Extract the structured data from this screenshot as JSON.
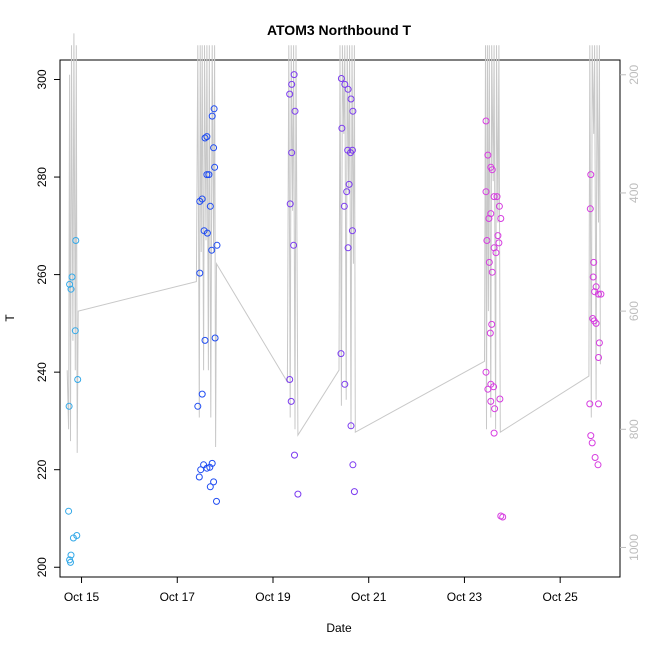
{
  "chart_data": {
    "type": "scatter",
    "title": "ATOM3 Northbound T",
    "xlabel": "Date",
    "ylabel": "T",
    "x_ticks": [
      "Oct 15",
      "Oct 17",
      "Oct 19",
      "Oct 21",
      "Oct 23",
      "Oct 25"
    ],
    "x_tick_values": [
      15,
      17,
      19,
      21,
      23,
      25
    ],
    "xlim": [
      14.55,
      26.25
    ],
    "ylim": [
      198,
      304
    ],
    "y_ticks": [
      200,
      220,
      240,
      260,
      280,
      300
    ],
    "secondary_y": {
      "ylim": [
        1050,
        175
      ],
      "reversed": true,
      "ticks": [
        200,
        400,
        600,
        800,
        1000
      ],
      "color": "#bdbdbd"
    },
    "grid": false,
    "colors": {
      "cyan": "#34a9e8",
      "blue": "#1f4cf2",
      "violet": "#7b3af0",
      "magenta": "#d63ce0",
      "pressure_line": "#c8c8c8"
    },
    "series": [
      {
        "color": "cyan",
        "points": [
          [
            14.75,
            258
          ],
          [
            14.78,
            257
          ],
          [
            14.8,
            259.5
          ],
          [
            14.88,
            267
          ],
          [
            14.87,
            248.5
          ],
          [
            14.92,
            238.5
          ],
          [
            14.74,
            233
          ],
          [
            14.73,
            211.5
          ],
          [
            14.78,
            202.5
          ],
          [
            14.83,
            206
          ],
          [
            14.9,
            206.5
          ],
          [
            14.75,
            201.5
          ],
          [
            14.77,
            201
          ]
        ]
      },
      {
        "color": "blue",
        "points": [
          [
            17.47,
            275
          ],
          [
            17.52,
            275.5
          ],
          [
            17.58,
            288
          ],
          [
            17.62,
            288.3
          ],
          [
            17.62,
            280.5
          ],
          [
            17.66,
            280.5
          ],
          [
            17.69,
            274
          ],
          [
            17.73,
            292.5
          ],
          [
            17.77,
            294
          ],
          [
            17.76,
            286
          ],
          [
            17.78,
            282
          ],
          [
            17.56,
            269
          ],
          [
            17.63,
            268.5
          ],
          [
            17.72,
            265
          ],
          [
            17.83,
            266
          ],
          [
            17.47,
            260.3
          ],
          [
            17.79,
            247
          ],
          [
            17.58,
            246.5
          ],
          [
            17.52,
            235.5
          ],
          [
            17.43,
            233
          ],
          [
            17.46,
            218.5
          ],
          [
            17.49,
            220
          ],
          [
            17.55,
            221
          ],
          [
            17.62,
            220.3
          ],
          [
            17.68,
            220.5
          ],
          [
            17.73,
            221.3
          ],
          [
            17.76,
            217.5
          ],
          [
            17.69,
            216.5
          ],
          [
            17.82,
            213.5
          ]
        ]
      },
      {
        "color": "violet",
        "points": [
          [
            19.35,
            297
          ],
          [
            19.39,
            299
          ],
          [
            19.44,
            301
          ],
          [
            19.46,
            293.5
          ],
          [
            19.39,
            285
          ],
          [
            19.36,
            274.5
          ],
          [
            19.43,
            266
          ],
          [
            19.35,
            238.5
          ],
          [
            19.38,
            234
          ],
          [
            19.45,
            223
          ],
          [
            19.52,
            215
          ]
        ]
      },
      {
        "color": "violet",
        "points": [
          [
            20.43,
            300.2
          ],
          [
            20.5,
            299
          ],
          [
            20.57,
            298
          ],
          [
            20.63,
            296
          ],
          [
            20.67,
            293.5
          ],
          [
            20.44,
            290
          ],
          [
            20.56,
            285.5
          ],
          [
            20.62,
            285
          ],
          [
            20.66,
            285.5
          ],
          [
            20.49,
            274
          ],
          [
            20.54,
            277
          ],
          [
            20.59,
            278.5
          ],
          [
            20.66,
            269
          ],
          [
            20.57,
            265.5
          ],
          [
            20.42,
            243.8
          ],
          [
            20.5,
            237.5
          ],
          [
            20.63,
            229
          ],
          [
            20.67,
            221
          ],
          [
            20.7,
            215.5
          ]
        ]
      },
      {
        "color": "magenta",
        "points": [
          [
            23.45,
            291.5
          ],
          [
            23.49,
            284.5
          ],
          [
            23.55,
            282
          ],
          [
            23.58,
            281.5
          ],
          [
            23.45,
            277
          ],
          [
            23.62,
            276
          ],
          [
            23.68,
            276
          ],
          [
            23.73,
            274
          ],
          [
            23.51,
            271.5
          ],
          [
            23.55,
            272.5
          ],
          [
            23.76,
            271.5
          ],
          [
            23.47,
            267
          ],
          [
            23.62,
            265.5
          ],
          [
            23.7,
            268
          ],
          [
            23.72,
            266.5
          ],
          [
            23.52,
            262.5
          ],
          [
            23.58,
            260.5
          ],
          [
            23.66,
            264.5
          ],
          [
            23.57,
            249.8
          ],
          [
            23.54,
            248
          ],
          [
            23.45,
            240
          ],
          [
            23.49,
            236.5
          ],
          [
            23.55,
            237.5
          ],
          [
            23.61,
            237
          ],
          [
            23.55,
            234
          ],
          [
            23.74,
            234.5
          ],
          [
            23.63,
            232.5
          ],
          [
            23.62,
            227.5
          ],
          [
            23.76,
            210.5
          ],
          [
            23.8,
            210.3
          ]
        ]
      },
      {
        "color": "magenta",
        "points": [
          [
            25.64,
            280.5
          ],
          [
            25.63,
            273.5
          ],
          [
            25.7,
            262.5
          ],
          [
            25.69,
            259.5
          ],
          [
            25.75,
            257.5
          ],
          [
            25.8,
            256
          ],
          [
            25.72,
            256.5
          ],
          [
            25.85,
            256
          ],
          [
            25.68,
            251
          ],
          [
            25.71,
            250.5
          ],
          [
            25.75,
            250
          ],
          [
            25.82,
            246
          ],
          [
            25.8,
            243
          ],
          [
            25.62,
            233.5
          ],
          [
            25.8,
            233.5
          ],
          [
            25.64,
            227
          ],
          [
            25.67,
            225.5
          ],
          [
            25.73,
            222.5
          ],
          [
            25.79,
            221
          ]
        ]
      }
    ],
    "pressure_line": {
      "axis": "secondary",
      "points": [
        [
          14.7,
          700
        ],
        [
          14.73,
          800
        ],
        [
          14.75,
          200
        ],
        [
          14.77,
          820
        ],
        [
          14.79,
          150
        ],
        [
          14.82,
          650
        ],
        [
          14.84,
          130
        ],
        [
          14.87,
          700
        ],
        [
          14.89,
          150
        ],
        [
          14.91,
          840
        ],
        [
          14.93,
          600
        ],
        [
          17.4,
          550
        ],
        [
          17.43,
          150
        ],
        [
          17.46,
          780
        ],
        [
          17.48,
          150
        ],
        [
          17.5,
          500
        ],
        [
          17.52,
          150
        ],
        [
          17.55,
          700
        ],
        [
          17.57,
          150
        ],
        [
          17.6,
          480
        ],
        [
          17.62,
          150
        ],
        [
          17.65,
          700
        ],
        [
          17.67,
          150
        ],
        [
          17.7,
          780
        ],
        [
          17.73,
          150
        ],
        [
          17.76,
          500
        ],
        [
          17.78,
          150
        ],
        [
          17.8,
          830
        ],
        [
          17.82,
          520
        ],
        [
          19.3,
          720
        ],
        [
          19.33,
          150
        ],
        [
          19.36,
          780
        ],
        [
          19.38,
          150
        ],
        [
          19.41,
          430
        ],
        [
          19.43,
          150
        ],
        [
          19.46,
          800
        ],
        [
          19.48,
          150
        ],
        [
          19.52,
          810
        ],
        [
          20.38,
          700
        ],
        [
          20.4,
          150
        ],
        [
          20.43,
          760
        ],
        [
          20.45,
          150
        ],
        [
          20.48,
          300
        ],
        [
          20.5,
          150
        ],
        [
          20.53,
          750
        ],
        [
          20.55,
          150
        ],
        [
          20.58,
          400
        ],
        [
          20.6,
          150
        ],
        [
          20.63,
          800
        ],
        [
          20.65,
          150
        ],
        [
          20.68,
          520
        ],
        [
          20.7,
          150
        ],
        [
          20.72,
          805
        ],
        [
          23.42,
          685
        ],
        [
          23.44,
          150
        ],
        [
          23.46,
          800
        ],
        [
          23.48,
          150
        ],
        [
          23.5,
          600
        ],
        [
          23.52,
          150
        ],
        [
          23.55,
          780
        ],
        [
          23.57,
          150
        ],
        [
          23.6,
          380
        ],
        [
          23.62,
          150
        ],
        [
          23.65,
          800
        ],
        [
          23.67,
          150
        ],
        [
          23.7,
          450
        ],
        [
          23.72,
          150
        ],
        [
          23.75,
          805
        ],
        [
          25.6,
          710
        ],
        [
          25.62,
          150
        ],
        [
          25.65,
          780
        ],
        [
          25.67,
          150
        ],
        [
          25.7,
          300
        ],
        [
          25.72,
          150
        ],
        [
          25.75,
          750
        ],
        [
          25.77,
          150
        ],
        [
          25.8,
          450
        ],
        [
          25.82,
          150
        ],
        [
          25.84,
          690
        ]
      ]
    }
  }
}
